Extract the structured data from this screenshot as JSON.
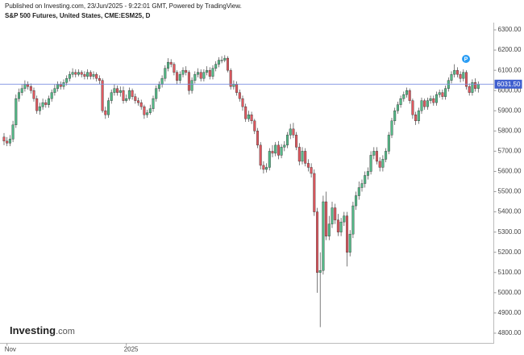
{
  "chart_data": {
    "type": "candlestick",
    "published": "Published on Investing.com, 23/Jun/2025 - 9:22:01 GMT, Powered by TradingView.",
    "title": "S&P 500 Futures, United States, CME:ESM25, D",
    "logo": {
      "name": "Investing",
      "suffix": ".com"
    },
    "marker_label": "P",
    "up_color": "#53b987",
    "down_color": "#e0585f",
    "line_color": "#7b8fe0",
    "ylim": [
      4750,
      6330
    ],
    "yticks": [
      {
        "value": 4800,
        "label": "4800.00"
      },
      {
        "value": 4900,
        "label": "4900.00"
      },
      {
        "value": 5000,
        "label": "5000.00"
      },
      {
        "value": 5100,
        "label": "5100.00"
      },
      {
        "value": 5200,
        "label": "5200.00"
      },
      {
        "value": 5300,
        "label": "5300.00"
      },
      {
        "value": 5400,
        "label": "5400.00"
      },
      {
        "value": 5500,
        "label": "5500.00"
      },
      {
        "value": 5600,
        "label": "5600.00"
      },
      {
        "value": 5700,
        "label": "5700.00"
      },
      {
        "value": 5800,
        "label": "5800.00"
      },
      {
        "value": 5900,
        "label": "5900.00"
      },
      {
        "value": 6000,
        "label": "6000.00"
      },
      {
        "value": 6100,
        "label": "6100.00"
      },
      {
        "value": 6200,
        "label": "6200.00"
      },
      {
        "value": 6300,
        "label": "6300.00"
      }
    ],
    "last_price": {
      "value": 6031.5,
      "label": "6031.50"
    },
    "categories": [
      null,
      "Nov",
      null,
      null,
      null,
      null,
      null,
      null,
      null,
      null,
      null,
      null,
      null,
      null,
      null,
      null,
      null,
      null,
      null,
      null,
      null,
      null,
      null,
      null,
      null,
      null,
      null,
      null,
      null,
      null,
      null,
      null,
      null,
      null,
      null,
      null,
      null,
      null,
      null,
      null,
      null,
      "2025",
      null,
      null,
      null,
      null,
      null,
      null,
      null,
      null,
      null,
      null,
      null,
      null,
      null,
      null,
      null,
      null,
      null,
      null,
      null,
      null,
      null,
      null,
      null,
      null,
      null,
      null,
      null,
      null,
      null,
      null,
      null,
      null,
      null,
      null,
      null,
      null,
      null,
      null,
      null,
      null,
      null,
      null,
      null,
      null,
      null,
      null,
      null,
      null,
      null,
      null,
      null,
      null,
      null,
      null,
      null,
      null,
      null,
      null,
      null,
      null,
      null,
      null,
      null,
      null,
      null,
      null,
      null,
      null,
      null,
      null,
      null,
      null,
      null,
      null,
      null,
      null,
      null,
      null,
      null,
      null,
      null,
      null,
      null,
      null,
      null,
      null,
      null,
      null,
      null,
      null,
      null,
      null,
      null,
      null,
      null,
      null,
      null,
      null,
      null,
      null,
      null,
      null,
      null,
      null,
      null,
      null,
      null,
      null,
      null,
      null,
      null,
      null,
      null,
      null,
      null,
      null,
      null,
      null
    ],
    "open": [
      5770,
      5750,
      5740,
      5760,
      5830,
      5960,
      5990,
      6010,
      6030,
      6020,
      6000,
      5960,
      5900,
      5920,
      5940,
      5930,
      5960,
      5990,
      6010,
      6030,
      6020,
      6040,
      6060,
      6080,
      6090,
      6080,
      6090,
      6080,
      6070,
      6090,
      6070,
      6080,
      6060,
      6050,
      5900,
      5880,
      5950,
      5990,
      6010,
      5990,
      6000,
      5950,
      5960,
      6000,
      5970,
      5950,
      5940,
      5920,
      5880,
      5890,
      5910,
      5960,
      6010,
      6030,
      6060,
      6110,
      6140,
      6130,
      6090,
      6050,
      6080,
      6100,
      6090,
      6000,
      6050,
      6080,
      6090,
      6060,
      6090,
      6100,
      6070,
      6110,
      6130,
      6150,
      6150,
      6160,
      6100,
      6020,
      6030,
      5990,
      5960,
      5920,
      5860,
      5880,
      5850,
      5800,
      5730,
      5630,
      5610,
      5620,
      5700,
      5690,
      5730,
      5680,
      5720,
      5730,
      5780,
      5810,
      5780,
      5720,
      5650,
      5700,
      5640,
      5620,
      5590,
      5400,
      5100,
      5110,
      5450,
      5280,
      5340,
      5420,
      5360,
      5300,
      5350,
      5380,
      5200,
      5290,
      5430,
      5480,
      5520,
      5540,
      5580,
      5600,
      5680,
      5700,
      5650,
      5620,
      5660,
      5700,
      5780,
      5850,
      5900,
      5930,
      5960,
      5980,
      6000,
      5950,
      5880,
      5850,
      5900,
      5950,
      5920,
      5950,
      5960,
      5940,
      5980,
      5990,
      5970,
      6010,
      6050,
      6080,
      6100,
      6080,
      6060,
      6090,
      6020,
      5990,
      6040,
      6010
    ],
    "high": [
      5790,
      5770,
      5780,
      5850,
      5980,
      6010,
      6030,
      6050,
      6045,
      6035,
      6015,
      5975,
      5940,
      5960,
      5955,
      5975,
      6005,
      6030,
      6045,
      6045,
      6055,
      6075,
      6095,
      6110,
      6105,
      6105,
      6100,
      6095,
      6105,
      6100,
      6095,
      6090,
      6075,
      6060,
      5920,
      5965,
      6005,
      6030,
      6025,
      6020,
      6020,
      5980,
      6015,
      6010,
      5985,
      5965,
      5955,
      5930,
      5905,
      5930,
      5975,
      6025,
      6045,
      6075,
      6125,
      6160,
      6155,
      6140,
      6100,
      6095,
      6115,
      6120,
      6100,
      6065,
      6095,
      6110,
      6105,
      6105,
      6120,
      6115,
      6125,
      6145,
      6165,
      6170,
      6175,
      6170,
      6110,
      6050,
      6045,
      6005,
      5975,
      5935,
      5900,
      5895,
      5860,
      5815,
      5745,
      5650,
      5640,
      5715,
      5730,
      5745,
      5750,
      5735,
      5750,
      5795,
      5835,
      5840,
      5795,
      5740,
      5720,
      5715,
      5660,
      5640,
      5610,
      5420,
      5200,
      5480,
      5500,
      5380,
      5450,
      5440,
      5390,
      5370,
      5400,
      5400,
      5310,
      5450,
      5500,
      5550,
      5560,
      5600,
      5620,
      5700,
      5720,
      5720,
      5670,
      5680,
      5715,
      5795,
      5865,
      5915,
      5945,
      5975,
      5995,
      6015,
      6010,
      5960,
      5895,
      5915,
      5965,
      5960,
      5965,
      5975,
      5975,
      5995,
      6005,
      6005,
      6025,
      6065,
      6095,
      6130,
      6115,
      6095,
      6105,
      6100,
      6035,
      6055,
      6060,
      6045
    ],
    "low": [
      5730,
      5725,
      5725,
      5745,
      5815,
      5945,
      5975,
      5995,
      6005,
      5985,
      5945,
      5885,
      5880,
      5905,
      5915,
      5915,
      5945,
      5975,
      5995,
      6005,
      6005,
      6025,
      6045,
      6065,
      6065,
      6070,
      6065,
      6055,
      6055,
      6055,
      6055,
      6045,
      6030,
      5890,
      5860,
      5865,
      5935,
      5975,
      5975,
      5970,
      5935,
      5940,
      5950,
      5955,
      5935,
      5925,
      5905,
      5860,
      5865,
      5880,
      5895,
      5945,
      5995,
      6015,
      6045,
      6095,
      6115,
      6075,
      6030,
      6035,
      6065,
      6075,
      5980,
      5985,
      6035,
      6065,
      6045,
      6045,
      6075,
      6055,
      6055,
      6095,
      6115,
      6135,
      6140,
      6090,
      6005,
      6005,
      5975,
      5945,
      5900,
      5845,
      5845,
      5835,
      5785,
      5715,
      5610,
      5590,
      5595,
      5605,
      5670,
      5675,
      5660,
      5665,
      5700,
      5715,
      5760,
      5765,
      5705,
      5630,
      5635,
      5625,
      5600,
      5570,
      5380,
      5000,
      4830,
      5090,
      5260,
      5260,
      5320,
      5340,
      5280,
      5280,
      5330,
      5130,
      5180,
      5270,
      5410,
      5460,
      5500,
      5520,
      5560,
      5585,
      5660,
      5635,
      5600,
      5600,
      5645,
      5685,
      5765,
      5830,
      5885,
      5915,
      5945,
      5965,
      5935,
      5860,
      5830,
      5835,
      5885,
      5905,
      5905,
      5935,
      5925,
      5925,
      5965,
      5955,
      5955,
      5995,
      6035,
      6065,
      6065,
      6040,
      6045,
      6005,
      5975,
      5975,
      5995,
      5990
    ],
    "close": [
      5750,
      5740,
      5760,
      5830,
      5960,
      5990,
      6010,
      6030,
      6020,
      6000,
      5960,
      5900,
      5920,
      5940,
      5930,
      5960,
      5990,
      6010,
      6030,
      6020,
      6040,
      6060,
      6080,
      6090,
      6080,
      6090,
      6080,
      6070,
      6090,
      6070,
      6080,
      6060,
      6050,
      5900,
      5880,
      5950,
      5990,
      6010,
      5990,
      6000,
      5950,
      5960,
      6000,
      5970,
      5950,
      5940,
      5920,
      5880,
      5890,
      5910,
      5960,
      6010,
      6030,
      6060,
      6110,
      6140,
      6130,
      6090,
      6050,
      6080,
      6100,
      6090,
      6000,
      6050,
      6080,
      6090,
      6060,
      6090,
      6100,
      6070,
      6110,
      6130,
      6150,
      6150,
      6160,
      6100,
      6020,
      6030,
      5990,
      5960,
      5920,
      5860,
      5880,
      5850,
      5800,
      5730,
      5630,
      5610,
      5620,
      5700,
      5690,
      5730,
      5680,
      5720,
      5730,
      5780,
      5810,
      5780,
      5720,
      5650,
      5700,
      5640,
      5620,
      5590,
      5400,
      5100,
      5110,
      5450,
      5280,
      5340,
      5420,
      5360,
      5300,
      5350,
      5380,
      5200,
      5290,
      5430,
      5480,
      5520,
      5540,
      5580,
      5600,
      5680,
      5700,
      5650,
      5620,
      5660,
      5700,
      5780,
      5850,
      5900,
      5930,
      5960,
      5980,
      6000,
      5950,
      5880,
      5850,
      5900,
      5950,
      5920,
      5950,
      5960,
      5940,
      5980,
      5990,
      5970,
      6010,
      6050,
      6080,
      6100,
      6080,
      6060,
      6090,
      6020,
      5990,
      6040,
      6010,
      6031.5
    ]
  }
}
